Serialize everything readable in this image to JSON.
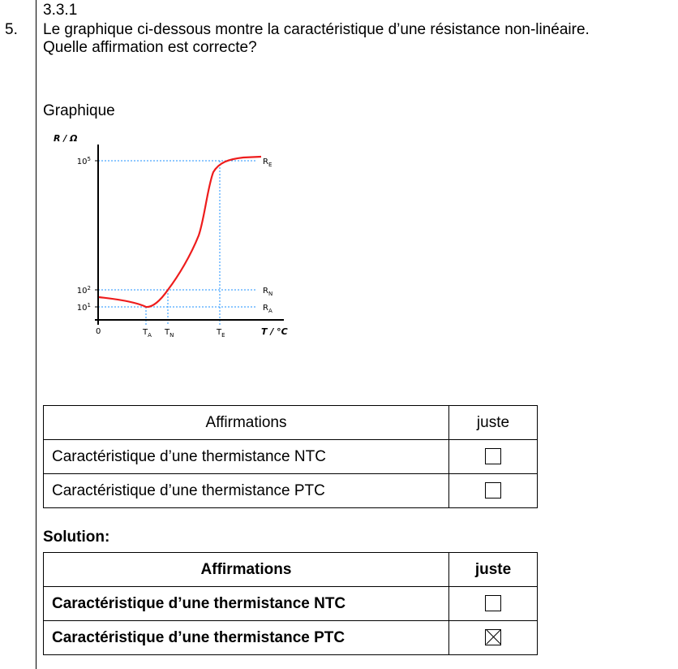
{
  "section": "3.3.1",
  "question_number": "5.",
  "question_line1": "Le graphique ci-dessous montre la caractéristique d’une résistance non-linéaire.",
  "question_line2": "Quelle affirmation est correcte?",
  "graph_heading": "Graphique",
  "graph": {
    "y_axis_label": "R / Ω",
    "x_axis_label": "T / °C",
    "origin_label": "0",
    "y_ticks": [
      {
        "base": "10",
        "exp": "5"
      },
      {
        "base": "10",
        "exp": "2"
      },
      {
        "base": "10",
        "exp": "1"
      }
    ],
    "x_ticks": [
      {
        "main": "T",
        "sub": "A"
      },
      {
        "main": "T",
        "sub": "N"
      },
      {
        "main": "T",
        "sub": "E"
      }
    ],
    "right_labels": [
      {
        "main": "R",
        "sub": "E"
      },
      {
        "main": "R",
        "sub": "N"
      },
      {
        "main": "R",
        "sub": "A"
      }
    ],
    "curve_color": "#ee1c1c",
    "guide_color": "#1e90ff"
  },
  "table1": {
    "header_statement": "Affirmations",
    "header_check": "juste",
    "rows": [
      {
        "text": "Caractéristique d’une thermistance NTC",
        "checked": false
      },
      {
        "text": "Caractéristique d’une thermistance PTC",
        "checked": false
      }
    ]
  },
  "solution_label": "Solution:",
  "table2": {
    "header_statement": "Affirmations",
    "header_check": "juste",
    "rows": [
      {
        "text": "Caractéristique d’une thermistance NTC",
        "checked": false
      },
      {
        "text": "Caractéristique d’une thermistance PTC",
        "checked": true
      }
    ]
  }
}
